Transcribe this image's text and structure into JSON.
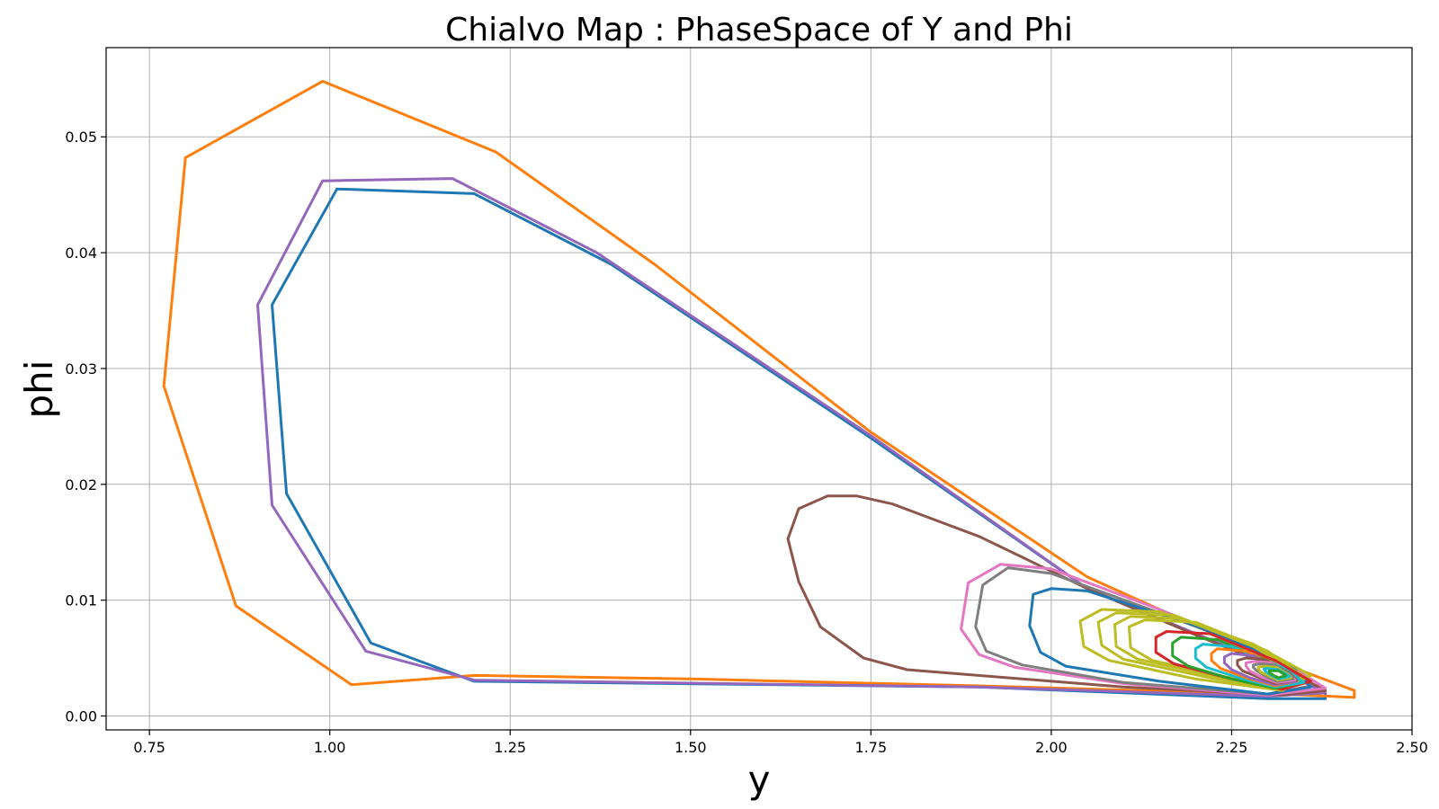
{
  "chart_data": {
    "type": "line",
    "title": "Chialvo Map : PhaseSpace of Y and Phi",
    "xlabel": "y",
    "ylabel": "phi",
    "xlim": [
      0.69,
      2.5
    ],
    "ylim": [
      -0.0012,
      0.0577
    ],
    "xticks": [
      "0.75",
      "1.00",
      "1.25",
      "1.50",
      "1.75",
      "2.00",
      "2.25",
      "2.50"
    ],
    "xtick_values": [
      0.75,
      1.0,
      1.25,
      1.5,
      1.75,
      2.0,
      2.25,
      2.5
    ],
    "yticks": [
      "0.00",
      "0.01",
      "0.02",
      "0.03",
      "0.04",
      "0.05"
    ],
    "ytick_values": [
      0.0,
      0.01,
      0.02,
      0.03,
      0.04,
      0.05
    ],
    "grid": true,
    "legend": "none",
    "series": [
      {
        "color": "#1f77b4",
        "x": [
          1.01,
          1.2,
          1.39,
          1.75,
          2.05,
          2.3,
          2.38,
          2.38,
          2.3,
          1.9,
          1.2,
          1.057,
          0.94,
          0.92,
          1.01
        ],
        "y": [
          0.0455,
          0.0451,
          0.039,
          0.024,
          0.011,
          0.0045,
          0.002,
          0.0015,
          0.0015,
          0.0025,
          0.003,
          0.0063,
          0.0192,
          0.0355,
          0.0455
        ]
      },
      {
        "color": "#ff7f0e",
        "x": [
          0.99,
          1.23,
          1.45,
          1.75,
          2.05,
          2.3,
          2.42,
          2.42,
          2.35,
          1.9,
          1.5,
          1.2,
          1.03,
          0.87,
          0.77,
          0.8,
          0.99
        ],
        "y": [
          0.0548,
          0.0487,
          0.039,
          0.0245,
          0.012,
          0.005,
          0.0022,
          0.0016,
          0.0018,
          0.0026,
          0.0032,
          0.0035,
          0.0027,
          0.0095,
          0.0285,
          0.0482,
          0.0548
        ]
      },
      {
        "color": "#9467bd",
        "x": [
          0.99,
          1.17,
          1.37,
          1.75,
          2.05,
          2.3,
          2.38,
          2.3,
          1.9,
          1.2,
          1.05,
          0.92,
          0.9,
          0.99
        ],
        "y": [
          0.0462,
          0.0464,
          0.04,
          0.0242,
          0.011,
          0.0045,
          0.002,
          0.0017,
          0.0025,
          0.0031,
          0.0056,
          0.0182,
          0.0355,
          0.0462
        ]
      },
      {
        "color": "#8c564b",
        "x": [
          1.69,
          1.73,
          1.78,
          1.9,
          2.05,
          2.2,
          2.34,
          2.38,
          2.32,
          2.1,
          1.8,
          1.74,
          1.68,
          1.65,
          1.635,
          1.65,
          1.69
        ],
        "y": [
          0.019,
          0.019,
          0.0183,
          0.0155,
          0.011,
          0.007,
          0.0035,
          0.0022,
          0.0018,
          0.0025,
          0.004,
          0.005,
          0.0077,
          0.0116,
          0.0153,
          0.0179,
          0.019
        ]
      },
      {
        "color": "#e377c2",
        "x": [
          1.93,
          2.0,
          2.15,
          2.3,
          2.38,
          2.3,
          2.1,
          1.95,
          1.9,
          1.875,
          1.885,
          1.93
        ],
        "y": [
          0.0131,
          0.0127,
          0.0092,
          0.0055,
          0.0024,
          0.0018,
          0.0028,
          0.0042,
          0.0053,
          0.0075,
          0.0115,
          0.0131
        ]
      },
      {
        "color": "#7f7f7f",
        "x": [
          1.94,
          2.0,
          2.15,
          2.3,
          2.36,
          2.3,
          2.1,
          1.96,
          1.91,
          1.895,
          1.905,
          1.94
        ],
        "y": [
          0.0128,
          0.0123,
          0.0089,
          0.0054,
          0.0026,
          0.0019,
          0.0029,
          0.0044,
          0.0056,
          0.0077,
          0.0113,
          0.0128
        ]
      },
      {
        "color": "#1f77b4",
        "x": [
          2.0,
          2.05,
          2.2,
          2.33,
          2.36,
          2.3,
          2.15,
          2.02,
          1.985,
          1.97,
          1.975,
          2.0
        ],
        "y": [
          0.011,
          0.0108,
          0.0078,
          0.0045,
          0.0025,
          0.0019,
          0.003,
          0.0043,
          0.0055,
          0.0078,
          0.0105,
          0.011
        ]
      },
      {
        "color": "#bcbd22",
        "x": [
          2.07,
          2.15,
          2.28,
          2.36,
          2.32,
          2.2,
          2.08,
          2.045,
          2.04,
          2.07
        ],
        "y": [
          0.0092,
          0.009,
          0.0062,
          0.0035,
          0.0022,
          0.0032,
          0.0048,
          0.006,
          0.0082,
          0.0092
        ]
      },
      {
        "color": "#bcbd22",
        "x": [
          2.09,
          2.17,
          2.28,
          2.35,
          2.32,
          2.22,
          2.1,
          2.07,
          2.065,
          2.09
        ],
        "y": [
          0.0089,
          0.0087,
          0.006,
          0.0034,
          0.0023,
          0.0033,
          0.0049,
          0.0061,
          0.0081,
          0.0089
        ]
      },
      {
        "color": "#bcbd22",
        "x": [
          2.11,
          2.18,
          2.29,
          2.35,
          2.32,
          2.23,
          2.12,
          2.09,
          2.088,
          2.11
        ],
        "y": [
          0.0086,
          0.0084,
          0.0058,
          0.0034,
          0.0024,
          0.0034,
          0.0049,
          0.006,
          0.0079,
          0.0086
        ]
      },
      {
        "color": "#bcbd22",
        "x": [
          2.13,
          2.2,
          2.3,
          2.35,
          2.32,
          2.24,
          2.14,
          2.11,
          2.108,
          2.13
        ],
        "y": [
          0.0083,
          0.0081,
          0.0056,
          0.0033,
          0.0025,
          0.0034,
          0.0048,
          0.0059,
          0.0077,
          0.0083
        ]
      },
      {
        "color": "#d62728",
        "x": [
          2.16,
          2.22,
          2.31,
          2.36,
          2.32,
          2.25,
          2.17,
          2.145,
          2.145,
          2.16
        ],
        "y": [
          0.0073,
          0.0071,
          0.0048,
          0.003,
          0.0023,
          0.0032,
          0.0045,
          0.0055,
          0.0068,
          0.0073
        ]
      },
      {
        "color": "#2ca02c",
        "x": [
          2.18,
          2.23,
          2.31,
          2.35,
          2.31,
          2.25,
          2.19,
          2.168,
          2.168,
          2.18
        ],
        "y": [
          0.0068,
          0.0066,
          0.0045,
          0.0029,
          0.0024,
          0.0032,
          0.0043,
          0.0052,
          0.0063,
          0.0068
        ]
      },
      {
        "color": "#17becf",
        "x": [
          2.21,
          2.25,
          2.32,
          2.35,
          2.31,
          2.26,
          2.215,
          2.2,
          2.2,
          2.21
        ],
        "y": [
          0.0062,
          0.006,
          0.0042,
          0.0029,
          0.0025,
          0.0033,
          0.0042,
          0.005,
          0.0058,
          0.0062
        ]
      },
      {
        "color": "#ff7f0e",
        "x": [
          2.23,
          2.27,
          2.32,
          2.34,
          2.31,
          2.27,
          2.235,
          2.222,
          2.222,
          2.23
        ],
        "y": [
          0.0058,
          0.0056,
          0.004,
          0.003,
          0.0026,
          0.0033,
          0.0041,
          0.0048,
          0.0054,
          0.0058
        ]
      },
      {
        "color": "#9467bd",
        "x": [
          2.25,
          2.28,
          2.325,
          2.34,
          2.31,
          2.275,
          2.25,
          2.24,
          2.24,
          2.25
        ],
        "y": [
          0.0054,
          0.0052,
          0.0038,
          0.003,
          0.0027,
          0.0033,
          0.004,
          0.0046,
          0.0051,
          0.0054
        ]
      },
      {
        "color": "#8c564b",
        "x": [
          2.27,
          2.295,
          2.33,
          2.34,
          2.31,
          2.285,
          2.265,
          2.258,
          2.258,
          2.27
        ],
        "y": [
          0.005,
          0.0049,
          0.0037,
          0.0031,
          0.0028,
          0.0034,
          0.0039,
          0.0044,
          0.0048,
          0.005
        ]
      },
      {
        "color": "#e377c2",
        "x": [
          2.28,
          2.305,
          2.33,
          2.338,
          2.312,
          2.29,
          2.275,
          2.27,
          2.27,
          2.28
        ],
        "y": [
          0.0047,
          0.0046,
          0.0036,
          0.0031,
          0.0029,
          0.0034,
          0.0039,
          0.0043,
          0.0046,
          0.0047
        ]
      },
      {
        "color": "#7f7f7f",
        "x": [
          2.29,
          2.31,
          2.33,
          2.335,
          2.312,
          2.295,
          2.285,
          2.28,
          2.28,
          2.29
        ],
        "y": [
          0.0045,
          0.0044,
          0.0036,
          0.0032,
          0.003,
          0.0035,
          0.0039,
          0.0042,
          0.0044,
          0.0045
        ]
      },
      {
        "color": "#bcbd22",
        "x": [
          2.295,
          2.312,
          2.328,
          2.332,
          2.314,
          2.3,
          2.29,
          2.287,
          2.287,
          2.295
        ],
        "y": [
          0.0043,
          0.0042,
          0.0036,
          0.0033,
          0.0031,
          0.0035,
          0.0038,
          0.0041,
          0.0042,
          0.0043
        ]
      },
      {
        "color": "#17becf",
        "x": [
          2.3,
          2.314,
          2.326,
          2.33,
          2.315,
          2.305,
          2.298,
          2.295,
          2.295,
          2.3
        ],
        "y": [
          0.0041,
          0.004,
          0.0036,
          0.0034,
          0.0032,
          0.0035,
          0.0038,
          0.004,
          0.0041,
          0.0041
        ]
      },
      {
        "color": "#2ca02c",
        "x": [
          2.305,
          2.315,
          2.323,
          2.325,
          2.315,
          2.308,
          2.303,
          2.302,
          2.305
        ],
        "y": [
          0.0039,
          0.0039,
          0.0036,
          0.0035,
          0.0033,
          0.0035,
          0.0037,
          0.0039,
          0.0039
        ]
      }
    ]
  }
}
